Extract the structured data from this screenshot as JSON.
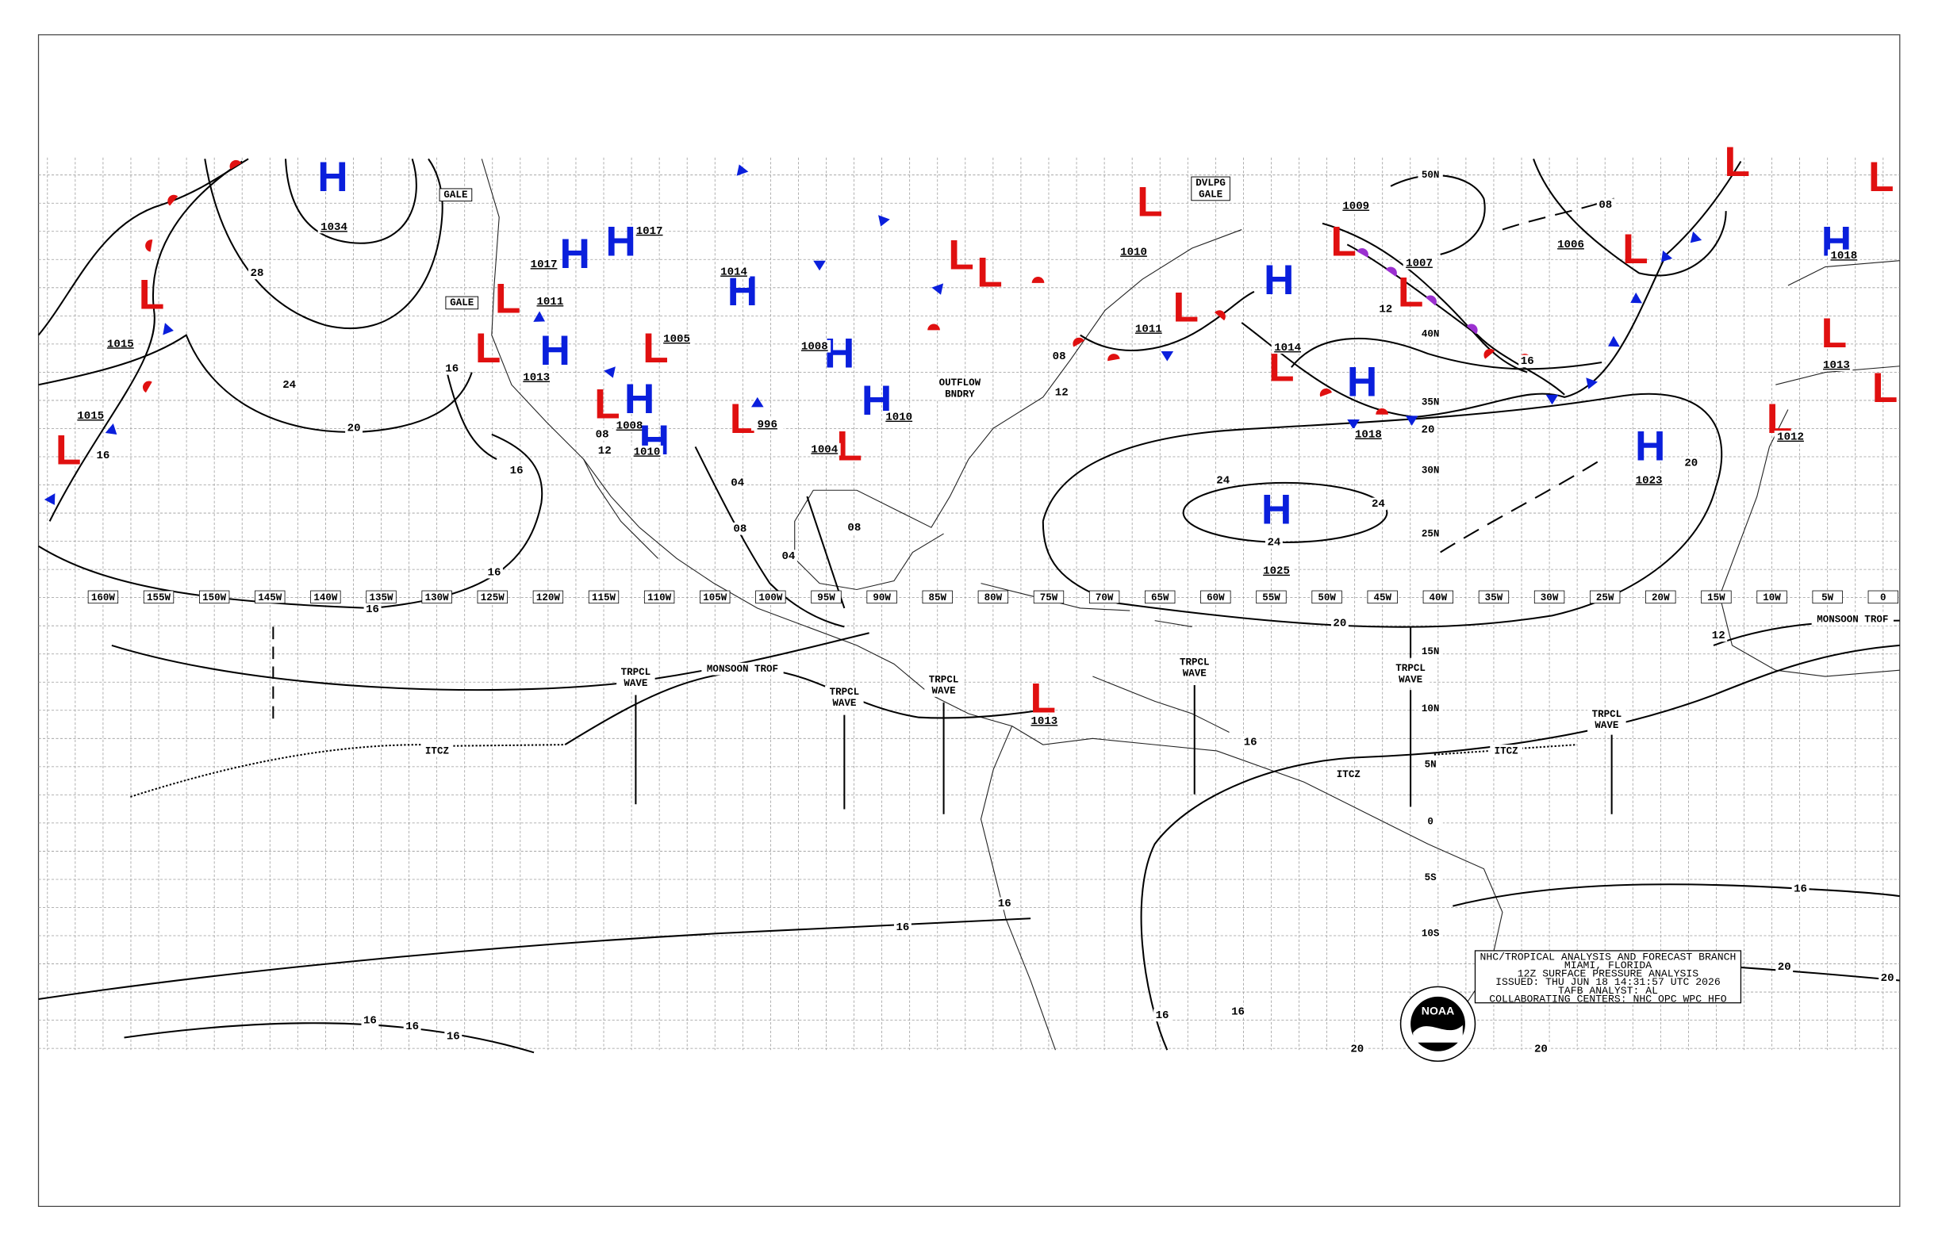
{
  "longitude_labels": [
    "160W",
    "155W",
    "150W",
    "145W",
    "140W",
    "135W",
    "130W",
    "125W",
    "120W",
    "115W",
    "110W",
    "105W",
    "100W",
    "95W",
    "90W",
    "85W",
    "80W",
    "75W",
    "70W",
    "65W",
    "60W",
    "55W",
    "50W",
    "45W",
    "40W",
    "35W",
    "30W",
    "25W",
    "20W",
    "15W",
    "10W",
    "5W",
    "0"
  ],
  "latitude_labels": [
    "50N",
    "40N",
    "35N",
    "30N",
    "25N",
    "15N",
    "10N",
    "5N",
    "0",
    "5S",
    "10S"
  ],
  "pressure_systems": [
    {
      "symbol": "H",
      "pressure": "1034"
    },
    {
      "symbol": "L",
      "pressure": "1015"
    },
    {
      "symbol": "L",
      "pressure": "1015"
    },
    {
      "symbol": "H",
      "pressure": "1017"
    },
    {
      "symbol": "H",
      "pressure": "1017"
    },
    {
      "symbol": "H",
      "pressure": "1014"
    },
    {
      "symbol": "L",
      "pressure": "1011"
    },
    {
      "symbol": "L",
      "pressure": "1013"
    },
    {
      "symbol": "H"
    },
    {
      "symbol": "L",
      "pressure": "1005"
    },
    {
      "symbol": "L",
      "pressure": "1008"
    },
    {
      "symbol": "H"
    },
    {
      "symbol": "H",
      "pressure": "1010"
    },
    {
      "symbol": "L",
      "pressure": "996"
    },
    {
      "symbol": "H",
      "pressure": "1008"
    },
    {
      "symbol": "H",
      "pressure": "1010"
    },
    {
      "symbol": "L",
      "pressure": "1004"
    },
    {
      "symbol": "L"
    },
    {
      "symbol": "L"
    },
    {
      "symbol": "L",
      "pressure": "1010"
    },
    {
      "symbol": "L",
      "pressure": "1011"
    },
    {
      "symbol": "H"
    },
    {
      "symbol": "L",
      "pressure": "1014"
    },
    {
      "symbol": "H",
      "pressure": "1018"
    },
    {
      "symbol": "L",
      "pressure": "1009"
    },
    {
      "symbol": "L",
      "pressure": "1007"
    },
    {
      "symbol": "H",
      "pressure": "1025"
    },
    {
      "symbol": "H",
      "pressure": "1023"
    },
    {
      "symbol": "L",
      "pressure": "1006"
    },
    {
      "symbol": "L"
    },
    {
      "symbol": "L"
    },
    {
      "symbol": "H",
      "pressure": "1018"
    },
    {
      "symbol": "L",
      "pressure": "1013"
    },
    {
      "symbol": "L",
      "pressure": "1012"
    },
    {
      "symbol": "L",
      "pressure": "1013"
    },
    {
      "symbol": "L"
    }
  ],
  "isobar_labels": [
    "28",
    "24",
    "20",
    "16",
    "16",
    "16",
    "16",
    "16",
    "12",
    "08",
    "04",
    "08",
    "04",
    "08",
    "12",
    "08",
    "20",
    "24",
    "24",
    "24",
    "20",
    "16",
    "12",
    "08",
    "20",
    "12",
    "16",
    "16",
    "16",
    "20",
    "20",
    "16",
    "16",
    "16",
    "16",
    "20",
    "20",
    "16",
    "16"
  ],
  "features": [
    {
      "lines": [
        "GALE"
      ]
    },
    {
      "lines": [
        "GALE"
      ]
    },
    {
      "lines": [
        "DVLPG",
        "GALE"
      ]
    },
    {
      "lines": [
        "OUTFLOW",
        "BNDRY"
      ]
    },
    {
      "lines": [
        "TRPCL",
        "WAVE"
      ]
    },
    {
      "lines": [
        "TRPCL",
        "WAVE"
      ]
    },
    {
      "lines": [
        "TRPCL",
        "WAVE"
      ]
    },
    {
      "lines": [
        "TRPCL",
        "WAVE"
      ]
    },
    {
      "lines": [
        "TRPCL",
        "WAVE"
      ]
    },
    {
      "lines": [
        "TRPCL",
        "WAVE"
      ]
    },
    {
      "lines": [
        "MONSOON TROF"
      ]
    },
    {
      "lines": [
        "MONSOON TROF"
      ]
    },
    {
      "lines": [
        "ITCZ"
      ]
    },
    {
      "lines": [
        "ITCZ"
      ]
    },
    {
      "lines": [
        "ITCZ"
      ]
    }
  ],
  "info_box": {
    "lines": [
      "NHC/TROPICAL ANALYSIS AND FORECAST BRANCH",
      "MIAMI, FLORIDA",
      "12Z SURFACE PRESSURE ANALYSIS",
      "ISSUED: THU JUN 18 14:31:57 UTC 2026",
      "TAFB ANALYST: AL",
      "COLLABORATING CENTERS: NHC OPC WPC HFO"
    ]
  },
  "logo": "NOAA"
}
